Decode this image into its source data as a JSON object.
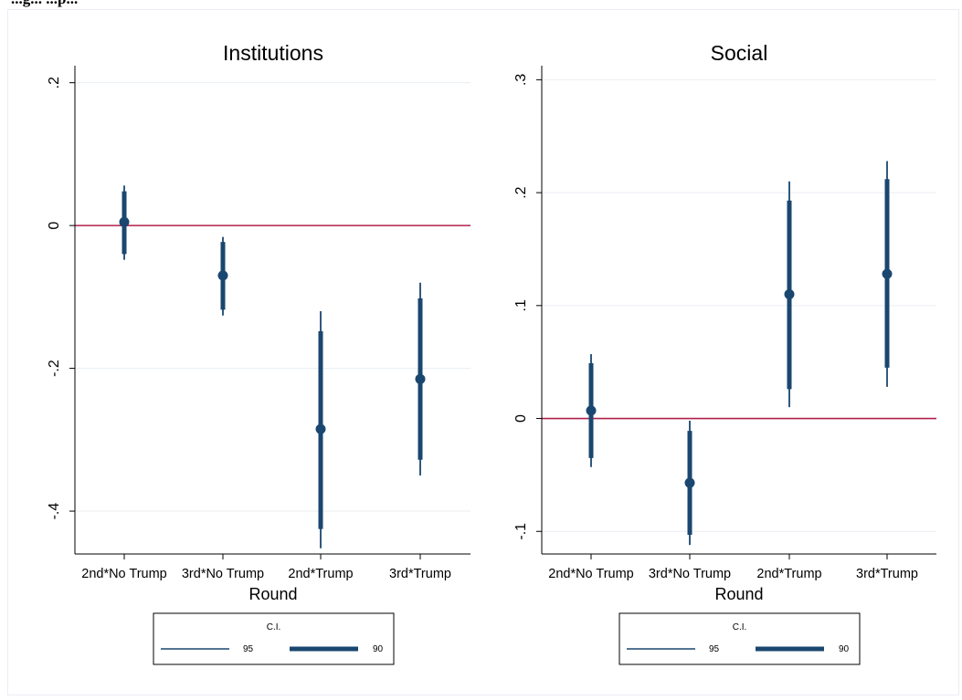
{
  "caption": "...g... ...p...",
  "chart_data": [
    {
      "type": "scatter",
      "title": "Institutions",
      "xlabel": "Round",
      "ylabel": "",
      "categories": [
        "2nd*No Trump",
        "3rd*No Trump",
        "2nd*Trump",
        "3rd*Trump"
      ],
      "ylim": [
        -0.46,
        0.22
      ],
      "yticks": [
        0.2,
        0,
        -0.2,
        -0.4
      ],
      "ytick_labels": [
        ".2",
        "0",
        "-.2",
        "-.4"
      ],
      "grid": true,
      "reference_line": 0,
      "points": [
        {
          "category": "2nd*No Trump",
          "estimate": 0.005,
          "ci90": [
            -0.04,
            0.048
          ],
          "ci95": [
            -0.048,
            0.056
          ]
        },
        {
          "category": "3rd*No Trump",
          "estimate": -0.07,
          "ci90": [
            -0.118,
            -0.023
          ],
          "ci95": [
            -0.126,
            -0.016
          ]
        },
        {
          "category": "2nd*Trump",
          "estimate": -0.285,
          "ci90": [
            -0.425,
            -0.148
          ],
          "ci95": [
            -0.452,
            -0.12
          ]
        },
        {
          "category": "3rd*Trump",
          "estimate": -0.215,
          "ci90": [
            -0.328,
            -0.102
          ],
          "ci95": [
            -0.35,
            -0.08
          ]
        }
      ],
      "legend": {
        "title": "C.I.",
        "items": [
          {
            "label": "95",
            "style": "thin"
          },
          {
            "label": "90",
            "style": "thick"
          }
        ],
        "placement": "bottom"
      }
    },
    {
      "type": "scatter",
      "title": "Social",
      "xlabel": "Round",
      "ylabel": "",
      "categories": [
        "2nd*No Trump",
        "3rd*No Trump",
        "2nd*Trump",
        "3rd*Trump"
      ],
      "ylim": [
        -0.12,
        0.31
      ],
      "yticks": [
        0.3,
        0.2,
        0.1,
        0,
        -0.1
      ],
      "ytick_labels": [
        ".3",
        ".2",
        ".1",
        "0",
        "-.1"
      ],
      "grid": true,
      "reference_line": 0,
      "points": [
        {
          "category": "2nd*No Trump",
          "estimate": 0.007,
          "ci90": [
            -0.035,
            0.049
          ],
          "ci95": [
            -0.043,
            0.057
          ]
        },
        {
          "category": "3rd*No Trump",
          "estimate": -0.057,
          "ci90": [
            -0.103,
            -0.011
          ],
          "ci95": [
            -0.112,
            -0.002
          ]
        },
        {
          "category": "2nd*Trump",
          "estimate": 0.11,
          "ci90": [
            0.026,
            0.193
          ],
          "ci95": [
            0.01,
            0.21
          ]
        },
        {
          "category": "3rd*Trump",
          "estimate": 0.128,
          "ci90": [
            0.045,
            0.212
          ],
          "ci95": [
            0.028,
            0.228
          ]
        }
      ],
      "legend": {
        "title": "C.I.",
        "items": [
          {
            "label": "95",
            "style": "thin"
          },
          {
            "label": "90",
            "style": "thick"
          }
        ],
        "placement": "bottom"
      }
    }
  ],
  "colors": {
    "marker": "#1a476f",
    "reference_line": "#b0204a",
    "grid": "#eaeef2",
    "axis": "#000000",
    "frame": "#e9edf2"
  }
}
